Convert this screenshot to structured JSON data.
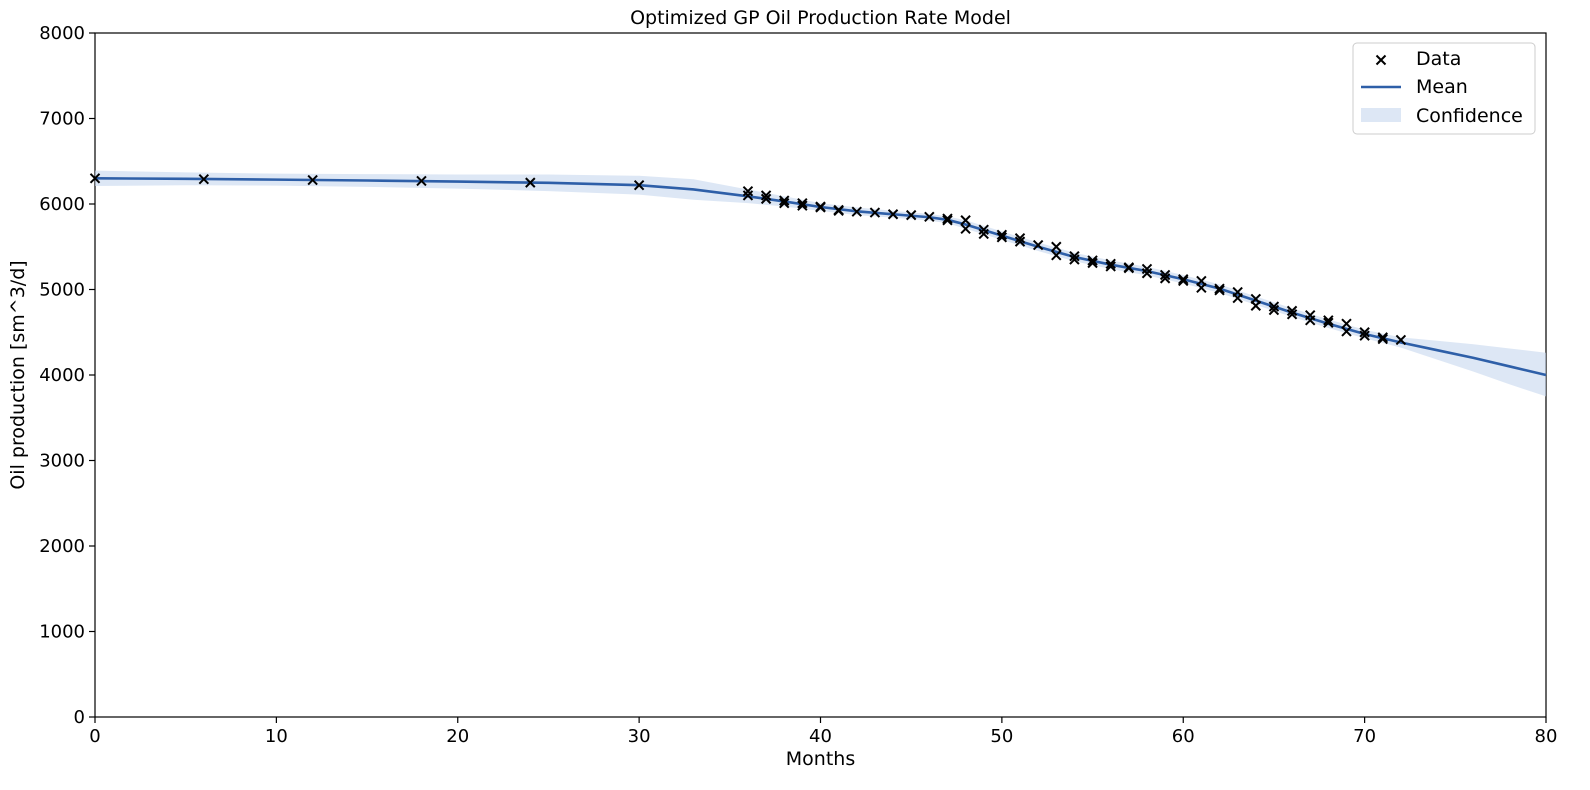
{
  "chart_data": {
    "type": "line",
    "title": "Optimized GP Oil Production Rate Model",
    "xlabel": "Months",
    "ylabel": "Oil production [sm^3/d]",
    "xlim": [
      0,
      80
    ],
    "ylim": [
      0,
      8000
    ],
    "xticks": [
      0,
      10,
      20,
      30,
      40,
      50,
      60,
      70,
      80
    ],
    "yticks": [
      0,
      1000,
      2000,
      3000,
      4000,
      5000,
      6000,
      7000,
      8000
    ],
    "grid": false,
    "legend": {
      "placement": "top-right",
      "entries": [
        {
          "key": "data",
          "label": "Data"
        },
        {
          "key": "mean",
          "label": "Mean"
        },
        {
          "key": "confidence",
          "label": "Confidence"
        }
      ]
    },
    "colors": {
      "mean": "#2e5fa8",
      "confidence": "#c6d7ee",
      "data": "#000000"
    },
    "series": [
      {
        "name": "Data",
        "kind": "scatter",
        "marker": "x",
        "x": [
          0,
          6,
          12,
          18,
          24,
          30,
          36,
          36,
          37,
          37,
          38,
          38,
          39,
          39,
          40,
          40,
          41,
          41,
          42,
          43,
          44,
          45,
          46,
          47,
          47,
          48,
          48,
          49,
          49,
          50,
          50,
          51,
          51,
          52,
          53,
          53,
          54,
          54,
          55,
          55,
          56,
          56,
          57,
          57,
          58,
          58,
          59,
          59,
          60,
          60,
          61,
          61,
          62,
          62,
          63,
          63,
          64,
          64,
          65,
          65,
          66,
          66,
          67,
          67,
          68,
          68,
          69,
          69,
          70,
          70,
          71,
          71,
          72
        ],
        "y": [
          6300,
          6290,
          6280,
          6270,
          6250,
          6220,
          6150,
          6100,
          6100,
          6060,
          6040,
          6010,
          6010,
          5980,
          5970,
          5960,
          5930,
          5920,
          5910,
          5900,
          5880,
          5870,
          5850,
          5830,
          5810,
          5810,
          5710,
          5700,
          5650,
          5640,
          5610,
          5600,
          5560,
          5520,
          5500,
          5400,
          5390,
          5350,
          5340,
          5310,
          5300,
          5270,
          5260,
          5250,
          5240,
          5190,
          5170,
          5130,
          5120,
          5100,
          5100,
          5020,
          5010,
          4990,
          4970,
          4900,
          4890,
          4810,
          4800,
          4760,
          4750,
          4710,
          4700,
          4640,
          4640,
          4610,
          4600,
          4510,
          4500,
          4460,
          4440,
          4420,
          4410
        ]
      },
      {
        "name": "Mean",
        "kind": "line",
        "x": [
          0,
          5,
          10,
          15,
          20,
          25,
          30,
          33,
          36,
          38,
          40,
          42,
          44,
          46,
          47,
          48,
          50,
          52,
          54,
          56,
          58,
          60,
          62,
          64,
          66,
          68,
          70,
          72,
          74,
          76,
          78,
          80
        ],
        "y": [
          6300,
          6295,
          6285,
          6275,
          6262,
          6248,
          6220,
          6170,
          6090,
          6030,
          5965,
          5915,
          5880,
          5845,
          5815,
          5760,
          5630,
          5500,
          5380,
          5290,
          5215,
          5120,
          5010,
          4870,
          4730,
          4600,
          4480,
          4380,
          4290,
          4200,
          4100,
          4000
        ]
      },
      {
        "name": "Confidence",
        "kind": "band",
        "x": [
          0,
          5,
          10,
          15,
          20,
          25,
          30,
          33,
          36,
          38,
          40,
          42,
          44,
          46,
          47,
          48,
          50,
          52,
          54,
          56,
          58,
          60,
          62,
          64,
          66,
          68,
          70,
          72,
          74,
          76,
          78,
          80
        ],
        "lower": [
          6210,
          6220,
          6215,
          6200,
          6180,
          6150,
          6110,
          6050,
          6010,
          5970,
          5920,
          5870,
          5840,
          5805,
          5775,
          5710,
          5580,
          5450,
          5330,
          5240,
          5165,
          5070,
          4960,
          4820,
          4680,
          4550,
          4430,
          4320,
          4180,
          4040,
          3890,
          3750
        ],
        "upper": [
          6390,
          6370,
          6355,
          6350,
          6345,
          6345,
          6330,
          6290,
          6170,
          6090,
          6010,
          5960,
          5920,
          5885,
          5855,
          5810,
          5680,
          5550,
          5430,
          5340,
          5265,
          5170,
          5060,
          4920,
          4780,
          4650,
          4530,
          4440,
          4400,
          4360,
          4310,
          4260
        ]
      }
    ]
  }
}
